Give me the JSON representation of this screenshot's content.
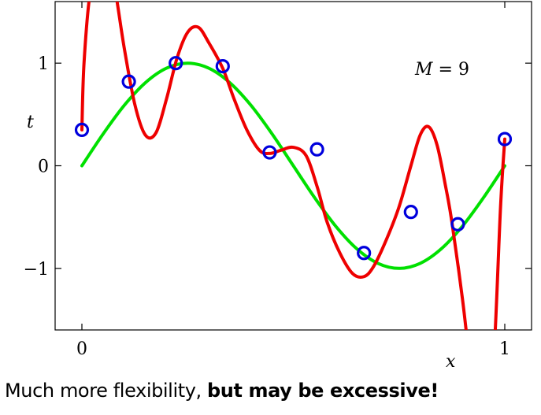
{
  "chart_data": {
    "type": "line",
    "xlabel": "x",
    "ylabel": "t",
    "xlim": [
      0,
      1
    ],
    "ylim": [
      -1.6,
      1.6
    ],
    "xticks": [
      0,
      1
    ],
    "xtick_labels": [
      "0",
      "1"
    ],
    "yticks": [
      1,
      0,
      -1
    ],
    "ytick_labels": [
      "1",
      "0",
      "−1"
    ],
    "grid": false,
    "annotation": {
      "label": "M",
      "value": "9"
    },
    "series": [
      {
        "kind": "function",
        "color": "#00e000",
        "function": "sin(2*pi*x)",
        "x": [
          0,
          0.05,
          0.1,
          0.15,
          0.2,
          0.25,
          0.3,
          0.35,
          0.4,
          0.45,
          0.5,
          0.55,
          0.6,
          0.65,
          0.7,
          0.75,
          0.8,
          0.85,
          0.9,
          0.95,
          1.0
        ],
        "y": [
          0,
          0.309,
          0.588,
          0.809,
          0.951,
          1.0,
          0.951,
          0.809,
          0.588,
          0.309,
          0,
          -0.309,
          -0.588,
          -0.809,
          -0.951,
          -1.0,
          -0.951,
          -0.809,
          -0.588,
          -0.309,
          0
        ]
      },
      {
        "kind": "fit",
        "color": "#ee0000",
        "x": [
          0.0,
          0.005,
          0.02,
          0.05,
          0.075,
          0.1,
          0.125,
          0.15,
          0.175,
          0.2,
          0.225,
          0.25,
          0.275,
          0.3,
          0.333,
          0.36,
          0.39,
          0.42,
          0.444,
          0.47,
          0.5,
          0.53,
          0.556,
          0.58,
          0.61,
          0.64,
          0.667,
          0.69,
          0.72,
          0.75,
          0.778,
          0.8,
          0.82,
          0.84,
          0.86,
          0.875,
          0.9,
          0.92,
          0.94,
          0.96,
          0.975,
          0.99,
          1.0
        ],
        "y": [
          0.35,
          1.0,
          1.7,
          2.2,
          1.8,
          1.15,
          0.6,
          0.3,
          0.32,
          0.65,
          1.05,
          1.3,
          1.35,
          1.2,
          0.95,
          0.65,
          0.35,
          0.15,
          0.12,
          0.15,
          0.18,
          0.1,
          -0.2,
          -0.55,
          -0.85,
          -1.05,
          -1.08,
          -0.98,
          -0.72,
          -0.4,
          0.0,
          0.3,
          0.38,
          0.2,
          -0.2,
          -0.55,
          -1.3,
          -2.0,
          -2.5,
          -2.4,
          -1.8,
          -0.4,
          0.26
        ]
      }
    ],
    "points": {
      "color": "#0000dd",
      "x": [
        0.0,
        0.111,
        0.222,
        0.333,
        0.444,
        0.556,
        0.667,
        0.778,
        0.889,
        1.0
      ],
      "y": [
        0.35,
        0.82,
        1.0,
        0.97,
        0.13,
        0.16,
        -0.85,
        -0.45,
        -0.57,
        0.26
      ]
    }
  },
  "caption": {
    "regular": "Much more flexibility, ",
    "bold": "but may be excessive!"
  }
}
